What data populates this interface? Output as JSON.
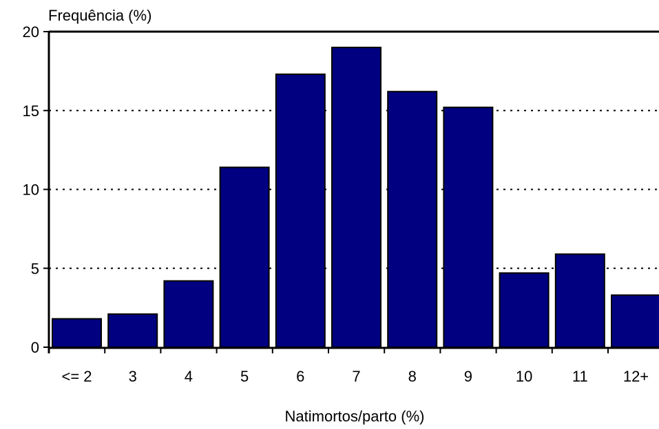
{
  "chart_data": {
    "type": "bar",
    "ylabel": "Frequência (%)",
    "xlabel": "Natimortos/parto (%)",
    "categories": [
      "<= 2",
      "3",
      "4",
      "5",
      "6",
      "7",
      "8",
      "9",
      "10",
      "11",
      "12+"
    ],
    "values": [
      1.8,
      2.1,
      4.2,
      11.4,
      17.3,
      19.0,
      16.2,
      15.2,
      4.7,
      5.9,
      3.3
    ],
    "ylim": [
      0,
      20
    ],
    "yticks": [
      0,
      5,
      10,
      15,
      20
    ],
    "grid": "horizontal dotted",
    "colors": {
      "bar_fill": "#000080",
      "bar_stroke": "#000000",
      "axis": "#000000",
      "grid": "#000000"
    }
  }
}
